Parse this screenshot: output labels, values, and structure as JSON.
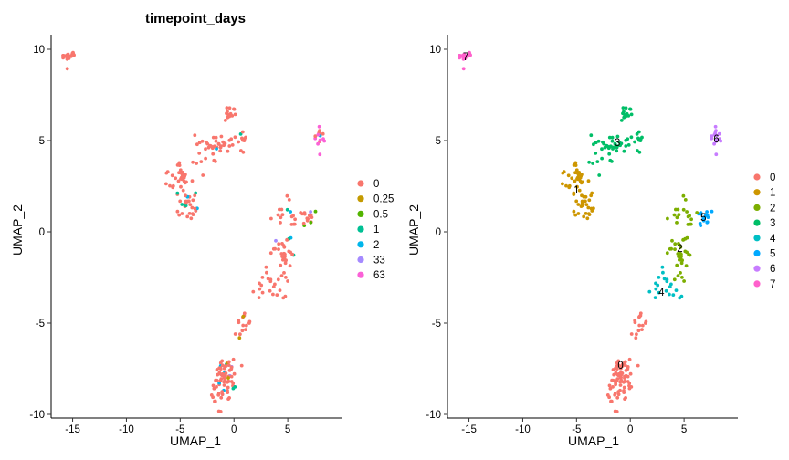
{
  "chart_data": [
    {
      "type": "scatter",
      "title": "timepoint_days",
      "xlabel": "UMAP_1",
      "ylabel": "UMAP_2",
      "xlim": [
        -17,
        10
      ],
      "ylim": [
        -10.2,
        10.8
      ],
      "x_ticks": [
        -15,
        -10,
        -5,
        0,
        5
      ],
      "y_ticks": [
        -10,
        -5,
        0,
        5,
        10
      ],
      "grid": false,
      "legend_position": "right",
      "legend": [
        {
          "label": "0",
          "color": "#F8766D"
        },
        {
          "label": "0.25",
          "color": "#C49A00"
        },
        {
          "label": "0.5",
          "color": "#53B400"
        },
        {
          "label": "1",
          "color": "#00C094"
        },
        {
          "label": "2",
          "color": "#00B6EB"
        },
        {
          "label": "33",
          "color": "#A58AFF"
        },
        {
          "label": "63",
          "color": "#FB61D7"
        }
      ],
      "clusters": [
        {
          "x": -15.4,
          "y": 9.6,
          "sx": 0.3,
          "sy": 0.25,
          "n": 20,
          "mix": [
            [
              "0",
              1.0
            ]
          ]
        },
        {
          "x": -5.0,
          "y": 2.8,
          "sx": 0.55,
          "sy": 0.45,
          "n": 35,
          "mix": [
            [
              "0",
              0.95
            ],
            [
              "1",
              0.05
            ]
          ]
        },
        {
          "x": -4.2,
          "y": 1.3,
          "sx": 0.45,
          "sy": 0.45,
          "n": 25,
          "mix": [
            [
              "0",
              0.9
            ],
            [
              "1",
              0.05
            ],
            [
              "2",
              0.05
            ]
          ]
        },
        {
          "x": -1.5,
          "y": 4.8,
          "sx": 1.1,
          "sy": 0.3,
          "n": 35,
          "mix": [
            [
              "0",
              0.95
            ],
            [
              "2",
              0.05
            ]
          ]
        },
        {
          "x": -0.4,
          "y": 6.4,
          "sx": 0.25,
          "sy": 0.2,
          "n": 14,
          "mix": [
            [
              "0",
              0.85
            ],
            [
              "2",
              0.15
            ]
          ]
        },
        {
          "x": -2.6,
          "y": 4.0,
          "sx": 0.6,
          "sy": 0.4,
          "n": 8,
          "mix": [
            [
              "0",
              1.0
            ]
          ]
        },
        {
          "x": 0.8,
          "y": 5.2,
          "sx": 0.15,
          "sy": 0.25,
          "n": 10,
          "mix": [
            [
              "0",
              0.9
            ],
            [
              "1",
              0.1
            ]
          ]
        },
        {
          "x": 8.0,
          "y": 5.0,
          "sx": 0.25,
          "sy": 0.3,
          "n": 14,
          "mix": [
            [
              "0",
              0.35
            ],
            [
              "63",
              0.45
            ],
            [
              "33",
              0.1
            ],
            [
              "2",
              0.1
            ]
          ]
        },
        {
          "x": 4.6,
          "y": -0.9,
          "sx": 0.5,
          "sy": 1.1,
          "n": 45,
          "mix": [
            [
              "0",
              0.85
            ],
            [
              "2",
              0.07
            ],
            [
              "33",
              0.04
            ],
            [
              "1",
              0.04
            ]
          ]
        },
        {
          "x": 6.9,
          "y": 0.8,
          "sx": 0.35,
          "sy": 0.25,
          "n": 16,
          "mix": [
            [
              "0",
              0.6
            ],
            [
              "0.5",
              0.15
            ],
            [
              "2",
              0.15
            ],
            [
              "33",
              0.1
            ]
          ]
        },
        {
          "x": 5.4,
          "y": 0.8,
          "sx": 0.3,
          "sy": 0.3,
          "n": 8,
          "mix": [
            [
              "0",
              0.7
            ],
            [
              "2",
              0.3
            ]
          ]
        },
        {
          "x": 3.2,
          "y": -3.0,
          "sx": 0.6,
          "sy": 0.4,
          "n": 20,
          "mix": [
            [
              "0",
              0.95
            ],
            [
              "2",
              0.05
            ]
          ]
        },
        {
          "x": 0.8,
          "y": -5.4,
          "sx": 0.35,
          "sy": 0.45,
          "n": 14,
          "mix": [
            [
              "0",
              0.9
            ],
            [
              "0.25",
              0.05
            ],
            [
              "2",
              0.05
            ]
          ]
        },
        {
          "x": -0.9,
          "y": -8.0,
          "sx": 0.55,
          "sy": 0.75,
          "n": 80,
          "mix": [
            [
              "0",
              0.86
            ],
            [
              "0.25",
              0.05
            ],
            [
              "2",
              0.04
            ],
            [
              "33",
              0.03
            ],
            [
              "1",
              0.02
            ]
          ]
        }
      ]
    },
    {
      "type": "scatter",
      "title": "",
      "xlabel": "UMAP_1",
      "ylabel": "UMAP_2",
      "xlim": [
        -17,
        10
      ],
      "ylim": [
        -10.2,
        10.8
      ],
      "x_ticks": [
        -15,
        -10,
        -5,
        0,
        5
      ],
      "y_ticks": [
        -10,
        -5,
        0,
        5,
        10
      ],
      "grid": false,
      "legend_position": "right",
      "legend": [
        {
          "label": "0",
          "color": "#F8766D"
        },
        {
          "label": "1",
          "color": "#CD9600"
        },
        {
          "label": "2",
          "color": "#7CAE00"
        },
        {
          "label": "3",
          "color": "#00BE67"
        },
        {
          "label": "4",
          "color": "#00BFC4"
        },
        {
          "label": "5",
          "color": "#00A9FF"
        },
        {
          "label": "6",
          "color": "#C77CFF"
        },
        {
          "label": "7",
          "color": "#FF61CC"
        }
      ],
      "cluster_labels": [
        {
          "text": "0",
          "x": -0.9,
          "y": -7.3
        },
        {
          "text": "1",
          "x": -5.0,
          "y": 2.3
        },
        {
          "text": "2",
          "x": 4.6,
          "y": -0.9
        },
        {
          "text": "3",
          "x": -1.2,
          "y": 4.9
        },
        {
          "text": "4",
          "x": 2.9,
          "y": -3.3
        },
        {
          "text": "5",
          "x": 6.8,
          "y": 0.8
        },
        {
          "text": "6",
          "x": 8.0,
          "y": 5.1
        },
        {
          "text": "7",
          "x": -15.3,
          "y": 9.6
        }
      ],
      "clusters": [
        {
          "x": -15.4,
          "y": 9.6,
          "sx": 0.3,
          "sy": 0.25,
          "n": 20,
          "mix": [
            [
              "7",
              1.0
            ]
          ]
        },
        {
          "x": -5.0,
          "y": 2.8,
          "sx": 0.55,
          "sy": 0.45,
          "n": 35,
          "mix": [
            [
              "1",
              1.0
            ]
          ]
        },
        {
          "x": -4.2,
          "y": 1.3,
          "sx": 0.45,
          "sy": 0.45,
          "n": 25,
          "mix": [
            [
              "1",
              1.0
            ]
          ]
        },
        {
          "x": -1.5,
          "y": 4.8,
          "sx": 1.1,
          "sy": 0.3,
          "n": 35,
          "mix": [
            [
              "3",
              1.0
            ]
          ]
        },
        {
          "x": -0.4,
          "y": 6.4,
          "sx": 0.25,
          "sy": 0.2,
          "n": 14,
          "mix": [
            [
              "3",
              1.0
            ]
          ]
        },
        {
          "x": -2.6,
          "y": 4.0,
          "sx": 0.6,
          "sy": 0.4,
          "n": 8,
          "mix": [
            [
              "3",
              1.0
            ]
          ]
        },
        {
          "x": 0.8,
          "y": 5.2,
          "sx": 0.15,
          "sy": 0.25,
          "n": 10,
          "mix": [
            [
              "3",
              1.0
            ]
          ]
        },
        {
          "x": 8.0,
          "y": 5.0,
          "sx": 0.25,
          "sy": 0.3,
          "n": 14,
          "mix": [
            [
              "6",
              1.0
            ]
          ]
        },
        {
          "x": 4.6,
          "y": -0.9,
          "sx": 0.5,
          "sy": 1.1,
          "n": 45,
          "mix": [
            [
              "2",
              1.0
            ]
          ]
        },
        {
          "x": 6.9,
          "y": 0.8,
          "sx": 0.35,
          "sy": 0.25,
          "n": 16,
          "mix": [
            [
              "5",
              1.0
            ]
          ]
        },
        {
          "x": 5.4,
          "y": 0.8,
          "sx": 0.3,
          "sy": 0.3,
          "n": 8,
          "mix": [
            [
              "2",
              1.0
            ]
          ]
        },
        {
          "x": 3.2,
          "y": -3.0,
          "sx": 0.6,
          "sy": 0.4,
          "n": 20,
          "mix": [
            [
              "4",
              1.0
            ]
          ]
        },
        {
          "x": 0.8,
          "y": -5.4,
          "sx": 0.35,
          "sy": 0.45,
          "n": 14,
          "mix": [
            [
              "0",
              1.0
            ]
          ]
        },
        {
          "x": -0.9,
          "y": -8.0,
          "sx": 0.55,
          "sy": 0.75,
          "n": 80,
          "mix": [
            [
              "0",
              1.0
            ]
          ]
        }
      ]
    }
  ]
}
